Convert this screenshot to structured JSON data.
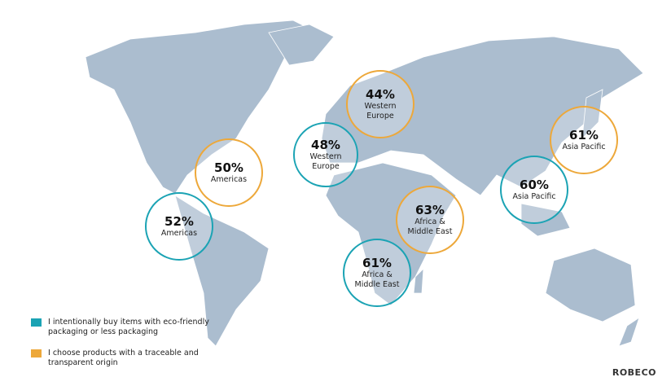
{
  "series": [
    {
      "name": "I intentionally buy items with eco-friendly packaging or less packaging",
      "color": "#1ba3b4",
      "points": [
        {
          "value": 48,
          "value_label": "48%",
          "region": "Western Europe"
        },
        {
          "value": 52,
          "value_label": "52%",
          "region": "Americas"
        },
        {
          "value": 61,
          "value_label": "61%",
          "region": "Africa & Middle East"
        },
        {
          "value": 60,
          "value_label": "60%",
          "region": "Asia Pacific"
        }
      ]
    },
    {
      "name": "I choose products with a traceable and transparent origin",
      "color": "#eda83a",
      "points": [
        {
          "value": 44,
          "value_label": "44%",
          "region": "Western Europe"
        },
        {
          "value": 50,
          "value_label": "50%",
          "region": "Americas"
        },
        {
          "value": 63,
          "value_label": "63%",
          "region": "Africa & Middle East"
        },
        {
          "value": 61,
          "value_label": "61%",
          "region": "Asia Pacific"
        }
      ]
    }
  ],
  "logo": "ROBECO"
}
